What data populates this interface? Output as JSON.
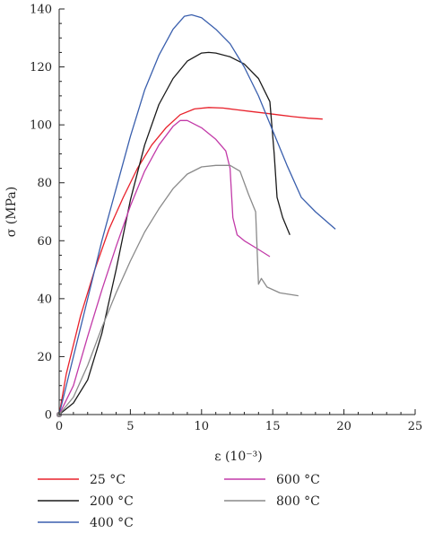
{
  "chart_data": {
    "type": "line",
    "title": "",
    "xlabel": "ε (10⁻³)",
    "ylabel": "σ (MPa)",
    "xlim": [
      0,
      25
    ],
    "ylim": [
      0,
      140
    ],
    "xticks": [
      0,
      5,
      10,
      15,
      20,
      25
    ],
    "yticks": [
      0,
      20,
      40,
      60,
      80,
      100,
      120,
      140
    ],
    "grid": false,
    "legend_position": "bottom",
    "series": [
      {
        "name": "25 °C",
        "color": "#e8212b",
        "x": [
          0,
          0.5,
          1.5,
          2.5,
          3.5,
          4.5,
          5.5,
          6.5,
          7.5,
          8.5,
          9.5,
          10.5,
          11.5,
          12.5,
          13.5,
          14.5,
          15.5,
          16.5,
          17.5,
          18.5
        ],
        "y": [
          0,
          14,
          34,
          50,
          64,
          75,
          85,
          93,
          99,
          103.5,
          105.5,
          106,
          105.8,
          105.2,
          104.6,
          104,
          103.4,
          102.8,
          102.3,
          102
        ]
      },
      {
        "name": "200 °C",
        "color": "#1a1a1a",
        "x": [
          0,
          1,
          2,
          3,
          4,
          5,
          6,
          7,
          8,
          9,
          10,
          10.5,
          11,
          12,
          13,
          14,
          14.8,
          15.1,
          15.3,
          15.7,
          16.2
        ],
        "y": [
          0,
          4,
          12,
          28,
          50,
          74,
          93,
          107,
          116,
          122,
          124.8,
          125,
          124.8,
          123.5,
          121,
          116,
          108,
          90,
          75,
          68,
          62
        ]
      },
      {
        "name": "400 °C",
        "color": "#3a5fad",
        "x": [
          0,
          1,
          2,
          3,
          4,
          5,
          6,
          7,
          8,
          8.8,
          9.3,
          10,
          11,
          12,
          13,
          14,
          15,
          16,
          17,
          18,
          19.4
        ],
        "y": [
          0,
          20,
          40,
          60,
          78,
          96,
          112,
          124,
          133,
          137.5,
          138,
          137,
          133,
          128,
          120,
          110,
          98,
          86,
          75,
          70,
          64
        ]
      },
      {
        "name": "600 °C",
        "color": "#c23aa8",
        "x": [
          0,
          1,
          2,
          3,
          4,
          5,
          6,
          7,
          8,
          8.5,
          9,
          10,
          11,
          11.7,
          12,
          12.2,
          12.5,
          13,
          14,
          14.8
        ],
        "y": [
          0,
          10,
          27,
          43,
          58,
          72,
          84,
          93,
          99.5,
          101.5,
          101.5,
          99,
          95,
          91,
          85,
          68,
          62,
          60,
          57,
          54.5
        ]
      },
      {
        "name": "800 °C",
        "color": "#8a8a8a",
        "x": [
          0,
          1,
          2,
          3,
          4,
          5,
          6,
          7,
          8,
          9,
          10,
          11,
          12,
          12.7,
          13.3,
          13.8,
          14,
          14.2,
          14.6,
          15.5,
          16.8
        ],
        "y": [
          0,
          6,
          17,
          30,
          42,
          53,
          63,
          71,
          78,
          83,
          85.5,
          86,
          86,
          84,
          76,
          70,
          45,
          47,
          44,
          42,
          41
        ]
      }
    ]
  }
}
